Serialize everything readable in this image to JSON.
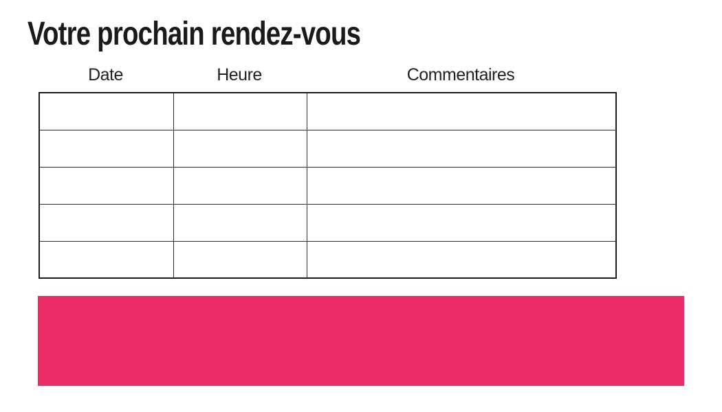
{
  "page": {
    "background": "#ffffff"
  },
  "title": "Votre prochain rendez-vous",
  "table": {
    "headers": [
      "Date",
      "Heure",
      "Commentaires"
    ],
    "rows": [
      [
        "",
        "",
        ""
      ],
      [
        "",
        "",
        ""
      ],
      [
        "",
        "",
        ""
      ],
      [
        "",
        "",
        ""
      ],
      [
        "",
        "",
        ""
      ]
    ],
    "border_color": "#1a1a1a"
  },
  "banner": {
    "color": "#ED2D68"
  },
  "text_color": "#1a1a1a"
}
